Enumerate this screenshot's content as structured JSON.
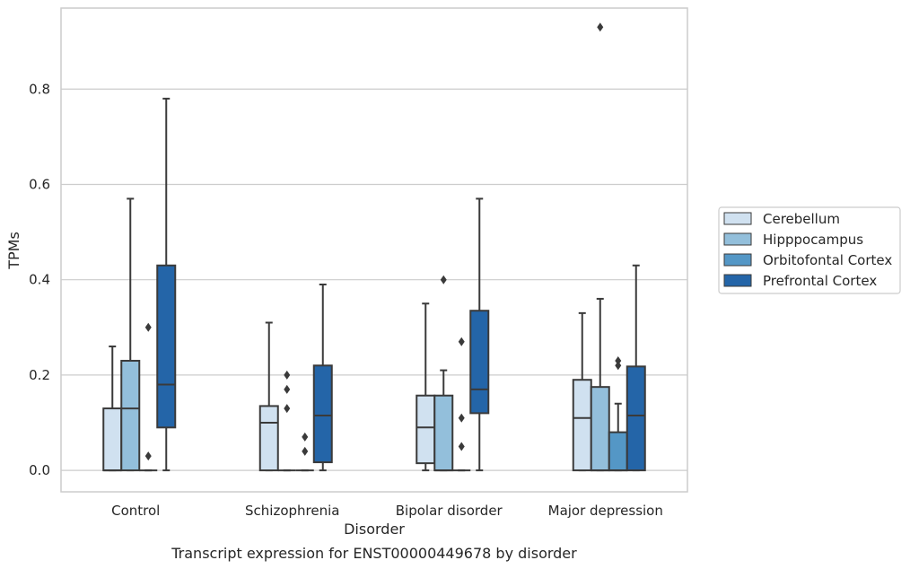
{
  "chart_data": {
    "type": "box",
    "caption": "Transcript expression for ENST00000449678 by disorder",
    "xlabel": "Disorder",
    "ylabel": "TPMs",
    "ylim": [
      -0.045,
      0.97
    ],
    "yticks": [
      0.0,
      0.2,
      0.4,
      0.6,
      0.8
    ],
    "ytick_labels": [
      "0.0",
      "0.2",
      "0.4",
      "0.6",
      "0.8"
    ],
    "grid": "horizontal",
    "legend_position": "right",
    "categories": [
      "Control",
      "Schizophrenia",
      "Bipolar disorder",
      "Major depression"
    ],
    "series": [
      {
        "name": "Cerebellum",
        "color": "#d0e1f0",
        "boxes": [
          {
            "min": 0.0,
            "q1": 0.0,
            "median": 0.0,
            "q3": 0.13,
            "max": 0.26,
            "outliers": []
          },
          {
            "min": 0.0,
            "q1": 0.0,
            "median": 0.1,
            "q3": 0.135,
            "max": 0.31,
            "outliers": []
          },
          {
            "min": 0.0,
            "q1": 0.015,
            "median": 0.09,
            "q3": 0.157,
            "max": 0.35,
            "outliers": []
          },
          {
            "min": 0.0,
            "q1": 0.0,
            "median": 0.11,
            "q3": 0.19,
            "max": 0.33,
            "outliers": []
          }
        ]
      },
      {
        "name": "Hipppocampus",
        "color": "#93bfdb",
        "boxes": [
          {
            "min": 0.0,
            "q1": 0.0,
            "median": 0.13,
            "q3": 0.23,
            "max": 0.57,
            "outliers": []
          },
          {
            "min": 0.0,
            "q1": 0.0,
            "median": 0.0,
            "q3": 0.0,
            "max": 0.0,
            "outliers": [
              0.13,
              0.17,
              0.2
            ]
          },
          {
            "min": 0.0,
            "q1": 0.0,
            "median": 0.0,
            "q3": 0.157,
            "max": 0.21,
            "outliers": [
              0.4
            ]
          },
          {
            "min": 0.0,
            "q1": 0.0,
            "median": 0.0,
            "q3": 0.175,
            "max": 0.36,
            "outliers": [
              0.93
            ]
          }
        ]
      },
      {
        "name": "Orbitofontal Cortex",
        "color": "#5497c6",
        "boxes": [
          {
            "min": 0.0,
            "q1": 0.0,
            "median": 0.0,
            "q3": 0.0,
            "max": 0.0,
            "outliers": [
              0.03,
              0.3
            ]
          },
          {
            "min": 0.0,
            "q1": 0.0,
            "median": 0.0,
            "q3": 0.0,
            "max": 0.0,
            "outliers": [
              0.04,
              0.07
            ]
          },
          {
            "min": 0.0,
            "q1": 0.0,
            "median": 0.0,
            "q3": 0.0,
            "max": 0.0,
            "outliers": [
              0.05,
              0.11,
              0.27
            ]
          },
          {
            "min": 0.0,
            "q1": 0.0,
            "median": 0.0,
            "q3": 0.08,
            "max": 0.14,
            "outliers": [
              0.22,
              0.23
            ]
          }
        ]
      },
      {
        "name": "Prefrontal Cortex",
        "color": "#2465a8",
        "boxes": [
          {
            "min": 0.0,
            "q1": 0.09,
            "median": 0.18,
            "q3": 0.43,
            "max": 0.78,
            "outliers": []
          },
          {
            "min": 0.0,
            "q1": 0.017,
            "median": 0.115,
            "q3": 0.22,
            "max": 0.39,
            "outliers": []
          },
          {
            "min": 0.0,
            "q1": 0.12,
            "median": 0.17,
            "q3": 0.335,
            "max": 0.57,
            "outliers": []
          },
          {
            "min": 0.0,
            "q1": 0.0,
            "median": 0.115,
            "q3": 0.218,
            "max": 0.43,
            "outliers": []
          }
        ]
      }
    ]
  }
}
